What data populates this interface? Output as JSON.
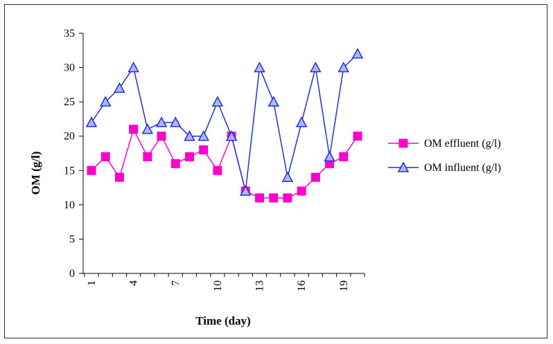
{
  "chart_data": {
    "type": "line",
    "title": "",
    "xlabel": "Time (day)",
    "ylabel": "OM (g/l)",
    "x": [
      1,
      2,
      3,
      4,
      5,
      6,
      7,
      8,
      9,
      10,
      11,
      12,
      13,
      14,
      15,
      16,
      17,
      18,
      19,
      20
    ],
    "x_tick_labels": [
      "1",
      "4",
      "7",
      "10",
      "13",
      "16",
      "19"
    ],
    "x_tick_values": [
      1,
      4,
      7,
      10,
      13,
      16,
      19
    ],
    "ylim": [
      0,
      35
    ],
    "y_ticks": [
      0,
      5,
      10,
      15,
      20,
      25,
      30,
      35
    ],
    "grid": false,
    "legend_position": "right",
    "series": [
      {
        "name": "OM effluent (g/l)",
        "color": "#ff00cc",
        "marker": "square",
        "values": [
          15,
          17,
          14,
          21,
          17,
          20,
          16,
          17,
          18,
          15,
          20,
          12,
          11,
          11,
          11,
          12,
          14,
          16,
          17,
          20
        ]
      },
      {
        "name": "OM influent (g/l)",
        "color": "#1f2fd6",
        "marker": "triangle",
        "values": [
          22,
          25,
          27,
          30,
          21,
          22,
          22,
          20,
          20,
          25,
          20,
          12,
          30,
          25,
          14,
          22,
          30,
          17,
          30,
          32
        ]
      }
    ]
  }
}
